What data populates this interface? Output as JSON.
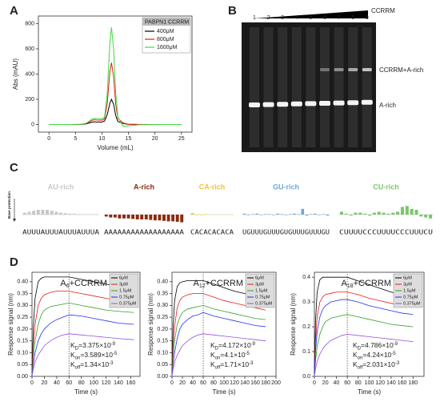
{
  "panel_labels": [
    "A",
    "B",
    "C",
    "D"
  ],
  "gel": {
    "lanes": [
      "1",
      "2",
      "3",
      "4",
      "5",
      "6",
      "7",
      "8",
      "9"
    ],
    "concentration_label": "CCRRM",
    "band_labels": [
      "CCRRM+A-rich",
      "A-rich"
    ]
  },
  "chart_data": [
    {
      "type": "line",
      "legend_title": "PABPN1 CCRRM",
      "xlabel": "Volume (mL)",
      "ylabel": "Abs (mAU)",
      "x": [
        0,
        2,
        4,
        6,
        7,
        8,
        8.5,
        9,
        10,
        10.5,
        11,
        11.5,
        11.8,
        12.2,
        12.6,
        13,
        14,
        15,
        17,
        20,
        25
      ],
      "series": [
        {
          "name": "400μM",
          "color": "#000000",
          "values": [
            0,
            0,
            0,
            1,
            5,
            18,
            22,
            20,
            20,
            28,
            80,
            170,
            200,
            160,
            70,
            25,
            8,
            2,
            0,
            0,
            0
          ]
        },
        {
          "name": "800μM",
          "color": "#e41a1c",
          "values": [
            0,
            0,
            0,
            2,
            8,
            30,
            38,
            36,
            34,
            45,
            170,
            420,
            490,
            380,
            160,
            50,
            12,
            3,
            1,
            0,
            0
          ]
        },
        {
          "name": "1600μM",
          "color": "#3ddc3d",
          "values": [
            0,
            0,
            0,
            2,
            10,
            40,
            50,
            48,
            45,
            60,
            250,
            650,
            770,
            600,
            250,
            60,
            -15,
            -10,
            -2,
            0,
            0
          ]
        }
      ],
      "xlim": [
        -2,
        27
      ],
      "ylim": [
        -60,
        860
      ],
      "xticks": [
        0,
        5,
        10,
        15,
        20,
        25
      ],
      "yticks": [
        0,
        200,
        400,
        600,
        800
      ]
    },
    {
      "type": "bar",
      "ylabel": "Base protection",
      "groups": [
        {
          "title": "AU-rich",
          "color": "#c8c8c8",
          "sequence": "AUUUAUUUAUUUAUUUA",
          "values": [
            0.2,
            0.3,
            0.4,
            0.5,
            0.5,
            0.5,
            0.4,
            0.3,
            0.2,
            0.15,
            0.1,
            0.1,
            0.05,
            0.05,
            0.05,
            0.05,
            0.05
          ]
        },
        {
          "title": "A-rich",
          "color": "#8b2a0e",
          "sequence": "AAAAAAAAAAAAAAAAAA",
          "values": [
            -0.2,
            -0.3,
            -0.3,
            -0.4,
            -0.4,
            -0.4,
            -0.45,
            -0.5,
            -0.5,
            -0.5,
            -0.55,
            -0.6,
            -0.6,
            -0.65,
            -0.7,
            -0.7,
            -0.75,
            -0.8
          ]
        },
        {
          "title": "CA-rich",
          "color": "#f2c230",
          "sequence": "CACACACACA",
          "values": [
            0.15,
            -0.05,
            -0.05,
            0.05,
            -0.02,
            0.02,
            -0.02,
            0.02,
            -0.02,
            0.02
          ]
        },
        {
          "title": "GU-rich",
          "color": "#6fa8dc",
          "sequence": "UGUUUGUUUGUGUUUGUUUGU",
          "values": [
            0.1,
            -0.05,
            0.05,
            0.1,
            -0.05,
            0.05,
            0.05,
            -0.05,
            0.1,
            0.05,
            -0.05,
            0.05,
            0.1,
            0.05,
            0.6,
            -0.1,
            0.05,
            0.1,
            -0.05,
            0.05,
            -0.1
          ]
        },
        {
          "title": "CU-rich",
          "color": "#7cc66a",
          "sequence": "CUUUUCCCUUUUCCCUUUCU",
          "values": [
            0.3,
            0.1,
            -0.1,
            0.2,
            0.2,
            0.1,
            -0.1,
            0.2,
            0.3,
            0.2,
            0.1,
            0.2,
            0.3,
            0.8,
            0.9,
            0.6,
            0.5,
            -0.2,
            -0.3,
            -0.4
          ]
        }
      ]
    },
    {
      "type": "line",
      "title": {
        "base": "A",
        "sub": "6",
        "rest": "+CCRRM"
      },
      "xlabel": "Time (s)",
      "ylabel": "Response signal (nm)",
      "x": [
        0,
        2,
        5,
        10,
        15,
        20,
        30,
        40,
        50,
        60,
        80,
        100,
        120,
        140,
        165
      ],
      "series": [
        {
          "name": "6μM",
          "color": "#000000",
          "values": [
            0,
            0.2,
            0.33,
            0.4,
            0.415,
            0.42,
            0.42,
            0.42,
            0.42,
            0.42,
            0.41,
            0.4,
            0.39,
            0.38,
            0.37
          ]
        },
        {
          "name": "3μM",
          "color": "#e41a1c",
          "values": [
            0,
            0.12,
            0.22,
            0.3,
            0.33,
            0.345,
            0.355,
            0.36,
            0.36,
            0.36,
            0.35,
            0.34,
            0.33,
            0.32,
            0.31
          ]
        },
        {
          "name": "1.5μM",
          "color": "#33a02c",
          "values": [
            0,
            0.08,
            0.15,
            0.22,
            0.26,
            0.28,
            0.295,
            0.3,
            0.305,
            0.31,
            0.3,
            0.29,
            0.28,
            0.275,
            0.27
          ]
        },
        {
          "name": "0.75μM",
          "color": "#2233ee",
          "values": [
            0,
            0.05,
            0.1,
            0.15,
            0.18,
            0.2,
            0.225,
            0.24,
            0.25,
            0.26,
            0.255,
            0.245,
            0.235,
            0.225,
            0.22
          ]
        },
        {
          "name": "0.375μM",
          "color": "#9b4fe0",
          "values": [
            0,
            0.03,
            0.06,
            0.09,
            0.11,
            0.13,
            0.15,
            0.165,
            0.175,
            0.18,
            0.175,
            0.17,
            0.165,
            0.16,
            0.155
          ]
        }
      ],
      "vline": 60,
      "kinetics": [
        {
          "k": "K",
          "sub": "D",
          "text": "=3.375×10",
          "sup": "-9"
        },
        {
          "k": "K",
          "sub": "on",
          "text": "=3.589×10",
          "sup": "-5"
        },
        {
          "k": "K",
          "sub": "off",
          "text": "=1.34×10",
          "sup": "-3"
        }
      ],
      "xlim": [
        0,
        175
      ],
      "ylim": [
        0,
        0.44
      ],
      "xticks": [
        0,
        20,
        40,
        60,
        80,
        100,
        120,
        140,
        160
      ],
      "yticks": [
        {
          "value": 0,
          "label": "0.00"
        },
        {
          "value": 0.05,
          "label": "0.05"
        },
        {
          "value": 0.1,
          "label": "0.10"
        },
        {
          "value": 0.15,
          "label": "0.15"
        },
        {
          "value": 0.2,
          "label": "0.20"
        },
        {
          "value": 0.25,
          "label": "0.25"
        },
        {
          "value": 0.3,
          "label": "0.30"
        },
        {
          "value": 0.35,
          "label": "0.35"
        },
        {
          "value": 0.4,
          "label": "0.40"
        }
      ]
    },
    {
      "type": "line",
      "title": {
        "base": "A",
        "sub": "12",
        "rest": "+CCRRM"
      },
      "xlabel": "Time (s)",
      "ylabel": "Response signal (nm)",
      "x": [
        0,
        2,
        5,
        10,
        15,
        20,
        30,
        40,
        50,
        60,
        80,
        100,
        120,
        140,
        160,
        180
      ],
      "series": [
        {
          "name": "6μM",
          "color": "#000000",
          "values": [
            0,
            0.2,
            0.32,
            0.38,
            0.395,
            0.4,
            0.405,
            0.405,
            0.405,
            0.405,
            0.39,
            0.375,
            0.36,
            0.35,
            0.34,
            0.33
          ]
        },
        {
          "name": "3μM",
          "color": "#e41a1c",
          "values": [
            0,
            0.12,
            0.21,
            0.29,
            0.32,
            0.335,
            0.345,
            0.35,
            0.35,
            0.35,
            0.335,
            0.32,
            0.31,
            0.3,
            0.29,
            0.28
          ]
        },
        {
          "name": "1.5μM",
          "color": "#33a02c",
          "values": [
            0,
            0.08,
            0.15,
            0.22,
            0.25,
            0.27,
            0.285,
            0.29,
            0.295,
            0.3,
            0.285,
            0.275,
            0.265,
            0.255,
            0.245,
            0.24
          ]
        },
        {
          "name": "0.75μM",
          "color": "#2233ee",
          "values": [
            0,
            0.05,
            0.1,
            0.16,
            0.2,
            0.22,
            0.24,
            0.255,
            0.26,
            0.27,
            0.255,
            0.245,
            0.235,
            0.225,
            0.215,
            0.21
          ]
        },
        {
          "name": "0.375μM",
          "color": "#9b4fe0",
          "values": [
            0,
            0.03,
            0.06,
            0.09,
            0.11,
            0.13,
            0.15,
            0.165,
            0.175,
            0.18,
            0.175,
            0.17,
            0.165,
            0.16,
            0.155,
            0.15
          ]
        }
      ],
      "vline": 60,
      "kinetics": [
        {
          "k": "K",
          "sub": "D",
          "text": "=4.172×10",
          "sup": "-9"
        },
        {
          "k": "K",
          "sub": "on",
          "text": "=4.1×10",
          "sup": "-5"
        },
        {
          "k": "K",
          "sub": "off",
          "text": "=1.71×10",
          "sup": "-3"
        }
      ],
      "xlim": [
        0,
        200
      ],
      "ylim": [
        0,
        0.44
      ],
      "xticks": [
        0,
        20,
        40,
        60,
        80,
        100,
        120,
        140,
        160,
        180,
        200
      ],
      "yticks": [
        {
          "value": 0,
          "label": "0.00"
        },
        {
          "value": 0.05,
          "label": "0.05"
        },
        {
          "value": 0.1,
          "label": "0.10"
        },
        {
          "value": 0.15,
          "label": "0.15"
        },
        {
          "value": 0.2,
          "label": "0.20"
        },
        {
          "value": 0.25,
          "label": "0.25"
        },
        {
          "value": 0.3,
          "label": "0.30"
        },
        {
          "value": 0.35,
          "label": "0.35"
        },
        {
          "value": 0.4,
          "label": "0.40"
        }
      ]
    },
    {
      "type": "line",
      "title": {
        "base": "A",
        "sub": "18",
        "rest": "+CCRRM"
      },
      "xlabel": "Time (s)",
      "ylabel": "Response signal (nm)",
      "x": [
        0,
        2,
        5,
        10,
        15,
        20,
        30,
        40,
        50,
        60,
        80,
        100,
        120,
        140,
        160,
        180
      ],
      "series": [
        {
          "name": "6μM",
          "color": "#000000",
          "values": [
            0,
            0.22,
            0.34,
            0.39,
            0.4,
            0.4,
            0.4,
            0.4,
            0.4,
            0.4,
            0.385,
            0.37,
            0.355,
            0.34,
            0.33,
            0.32
          ]
        },
        {
          "name": "3μM",
          "color": "#e41a1c",
          "values": [
            0,
            0.14,
            0.24,
            0.3,
            0.32,
            0.33,
            0.335,
            0.34,
            0.34,
            0.34,
            0.33,
            0.315,
            0.305,
            0.295,
            0.285,
            0.28
          ]
        },
        {
          "name": "1.5μM",
          "color": "#33a02c",
          "values": [
            0,
            0.06,
            0.12,
            0.17,
            0.2,
            0.22,
            0.235,
            0.24,
            0.245,
            0.25,
            0.24,
            0.23,
            0.22,
            0.21,
            0.205,
            0.2
          ]
        },
        {
          "name": "0.75μM",
          "color": "#2233ee",
          "values": [
            0,
            0.1,
            0.18,
            0.24,
            0.27,
            0.285,
            0.3,
            0.305,
            0.31,
            0.31,
            0.3,
            0.285,
            0.275,
            0.265,
            0.255,
            0.25
          ]
        },
        {
          "name": "0.375μM",
          "color": "#9b4fe0",
          "values": [
            0,
            0.03,
            0.06,
            0.09,
            0.11,
            0.125,
            0.145,
            0.155,
            0.165,
            0.17,
            0.165,
            0.16,
            0.155,
            0.15,
            0.145,
            0.14
          ]
        }
      ],
      "vline": 60,
      "kinetics": [
        {
          "k": "K",
          "sub": "D",
          "text": "=4.786×10",
          "sup": "-9"
        },
        {
          "k": "K",
          "sub": "on",
          "text": "=4.24×10",
          "sup": "-5"
        },
        {
          "k": "K",
          "sub": "off",
          "text": "=2.031×10",
          "sup": "-3"
        }
      ],
      "xlim": [
        0,
        200
      ],
      "ylim": [
        0,
        0.42
      ],
      "xticks": [
        0,
        20,
        40,
        60,
        80,
        100,
        120,
        140,
        160,
        180
      ],
      "yticks": [
        {
          "value": 0,
          "label": "0.0"
        },
        0.1,
        0.2,
        0.3,
        0.4
      ]
    }
  ]
}
